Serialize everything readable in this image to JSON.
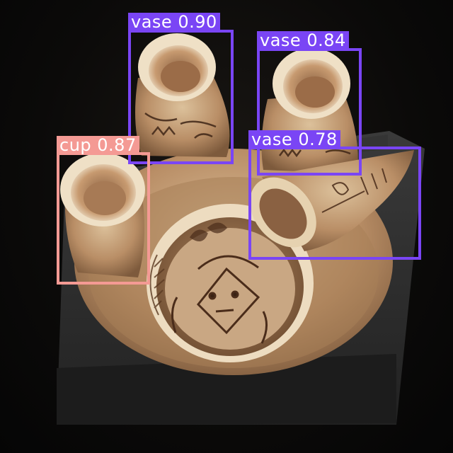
{
  "detections": [
    {
      "class": "vase",
      "confidence": "0.90",
      "color": "#7a45f5"
    },
    {
      "class": "vase",
      "confidence": "0.84",
      "color": "#7a45f5"
    },
    {
      "class": "vase",
      "confidence": "0.78",
      "color": "#7a45f5"
    },
    {
      "class": "cup",
      "confidence": "0.87",
      "color": "#f49a94"
    }
  ],
  "colors": {
    "vase_box": "#7a45f5",
    "cup_box": "#f49a94",
    "background": "#0b0a09",
    "pedestal": "#2b2b2b",
    "pottery": "#c9a27a"
  }
}
